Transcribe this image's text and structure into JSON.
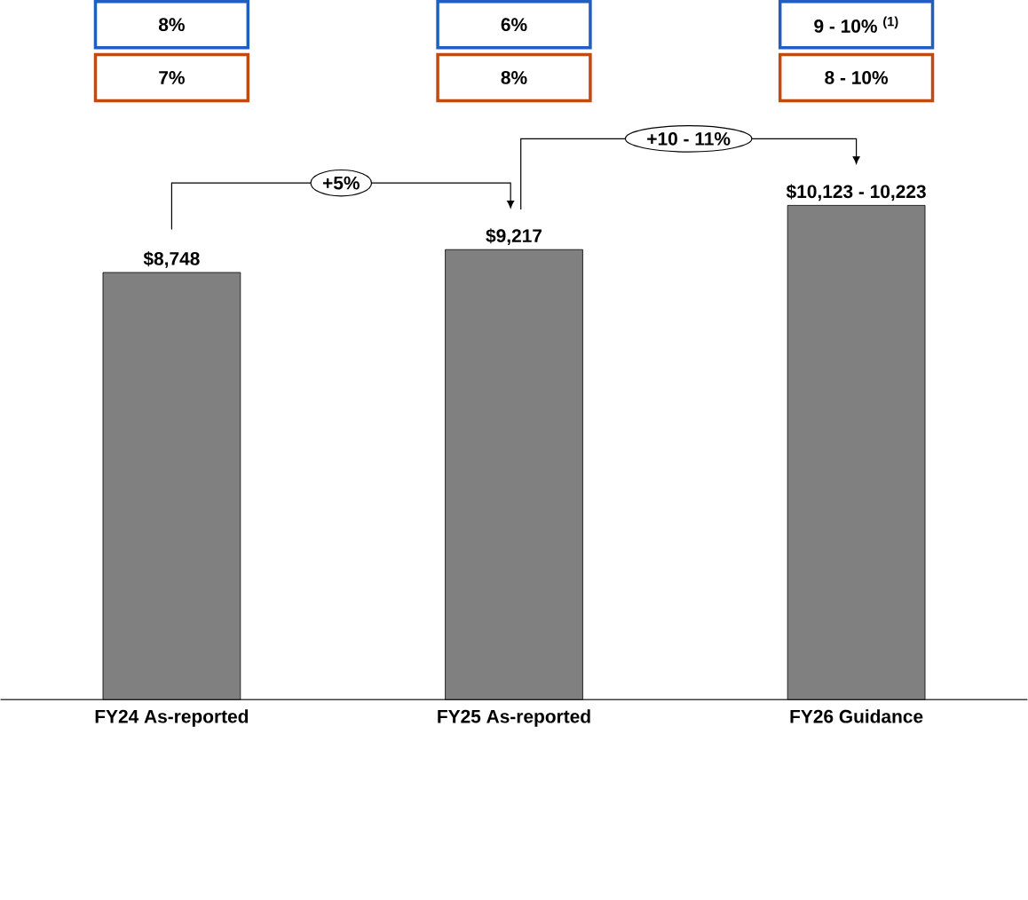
{
  "chart_data": {
    "type": "bar",
    "categories": [
      "FY24 As-reported",
      "FY25 As-reported",
      "FY26 Guidance"
    ],
    "values": [
      8748,
      9217,
      10123
    ],
    "value_labels": [
      "$8,748",
      "$9,217",
      "$10,123 - 10,223"
    ],
    "color": "#808080",
    "annotations": [
      "8%",
      "6%",
      "9 - 10% $^{(1)}$",
      "7%",
      "8%",
      "8 - 10%",
      "+5%",
      "+10 - 11%"
    ]
  }
}
